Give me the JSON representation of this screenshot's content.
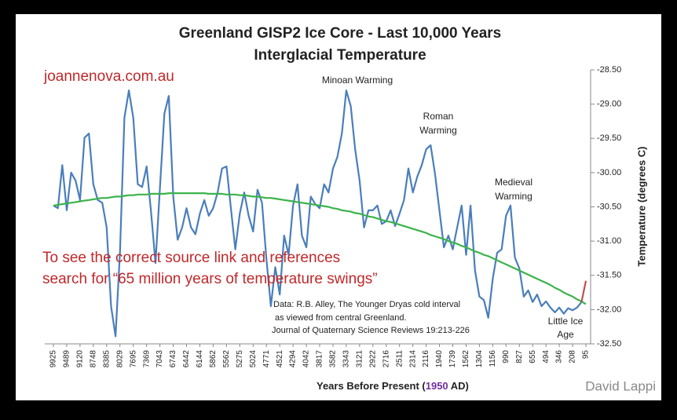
{
  "chart_data": {
    "type": "line",
    "title": [
      "Greenland GISP2 Ice Core - Last 10,000 Years",
      "Interglacial Temperature"
    ],
    "x_label": [
      "Years Before Present (",
      "1950",
      " AD)"
    ],
    "y_label": "Temperature (degrees C)",
    "site": "joannenova.com.au",
    "notice": [
      "To see the correct source link and references",
      "search for “65 million years of temperature swings”"
    ],
    "source": [
      "Data: R.B. Alley,  The Younger Dryas cold interval",
      "as viewed from central Greenland.",
      "Journal of Quaternary  Science Reviews 19:213-226"
    ],
    "annotations": [
      [
        "Minoan Warming"
      ],
      [
        "Roman",
        "Warming"
      ],
      [
        "Medieval",
        "Warming"
      ],
      [
        "Little Ice",
        "Age"
      ]
    ],
    "watermark": "David Lappi",
    "categories": [
      "9925",
      null,
      null,
      "9489",
      null,
      null,
      "9120",
      null,
      null,
      "8748",
      null,
      null,
      "8385",
      null,
      null,
      "8029",
      null,
      null,
      "7695",
      null,
      null,
      "7369",
      null,
      null,
      "7043",
      null,
      null,
      "6743",
      null,
      null,
      "6442",
      null,
      null,
      "6144",
      null,
      null,
      "5862",
      null,
      null,
      "5562",
      null,
      null,
      "5275",
      null,
      null,
      "5024",
      null,
      null,
      "4771",
      null,
      null,
      "4521",
      null,
      null,
      "4294",
      null,
      null,
      "4042",
      null,
      null,
      "3817",
      null,
      null,
      "3582",
      null,
      null,
      "3343",
      null,
      null,
      "3121",
      null,
      null,
      "2922",
      null,
      null,
      "2716",
      null,
      null,
      "2511",
      null,
      null,
      "2314",
      null,
      null,
      "2116",
      null,
      null,
      "1940",
      null,
      null,
      "1739",
      null,
      null,
      "1562",
      null,
      null,
      "1304",
      null,
      null,
      "1156",
      null,
      null,
      "990",
      null,
      null,
      "827",
      null,
      null,
      "655",
      null,
      null,
      "494",
      null,
      null,
      "346",
      null,
      null,
      "208",
      null,
      null,
      "95"
    ],
    "series": [
      {
        "color": "#4a7ebb",
        "values": [
          -30.48,
          -30.52,
          -29.89,
          -30.55,
          -30.0,
          -30.12,
          -30.4,
          -29.49,
          -29.43,
          -30.17,
          -30.4,
          -30.44,
          -30.8,
          -31.95,
          -32.39,
          -31.15,
          -29.2,
          -28.8,
          -29.2,
          -30.17,
          -30.21,
          -29.91,
          -30.57,
          -31.32,
          -30.23,
          -29.14,
          -28.88,
          -30.35,
          -30.98,
          -30.8,
          -30.52,
          -30.8,
          -30.9,
          -30.6,
          -30.4,
          -30.63,
          -30.52,
          -30.29,
          -29.94,
          -29.91,
          -30.52,
          -31.12,
          -30.6,
          -30.29,
          -30.63,
          -30.86,
          -30.25,
          -30.44,
          -31.26,
          -31.95,
          -31.38,
          -31.78,
          -30.92,
          -31.2,
          -30.48,
          -30.17,
          -30.92,
          -31.09,
          -30.35,
          -30.46,
          -30.52,
          -30.17,
          -30.29,
          -29.94,
          -29.77,
          -29.43,
          -28.8,
          -29.03,
          -29.66,
          -30.12,
          -30.8,
          -30.55,
          -30.55,
          -30.48,
          -30.75,
          -30.71,
          -30.55,
          -30.78,
          -30.6,
          -30.4,
          -29.94,
          -30.29,
          -30.06,
          -29.89,
          -29.66,
          -29.6,
          -30.02,
          -30.55,
          -31.09,
          -30.92,
          -31.12,
          -30.8,
          -30.48,
          -31.2,
          -30.48,
          -31.43,
          -31.81,
          -31.86,
          -32.12,
          -31.55,
          -31.17,
          -31.12,
          -30.63,
          -30.48,
          -31.24,
          -31.4,
          -31.81,
          -31.72,
          -31.89,
          -31.78,
          -31.95,
          -31.88,
          -31.97,
          -32.04,
          -31.97,
          -32.06,
          -31.98,
          -32.01,
          -31.97,
          -31.89,
          null
        ]
      },
      {
        "color": "#3bb34a",
        "values": [
          -30.48,
          -30.47,
          -30.46,
          -30.45,
          -30.44,
          -30.43,
          -30.42,
          -30.41,
          -30.4,
          -30.39,
          -30.38,
          -30.37,
          -30.37,
          -30.36,
          -30.35,
          -30.35,
          -30.34,
          -30.33,
          -30.33,
          -30.32,
          -30.32,
          -30.32,
          -30.31,
          -30.31,
          -30.31,
          -30.31,
          -30.3,
          -30.3,
          -30.3,
          -30.3,
          -30.3,
          -30.3,
          -30.3,
          -30.3,
          -30.3,
          -30.31,
          -30.31,
          -30.31,
          -30.31,
          -30.32,
          -30.32,
          -30.32,
          -30.33,
          -30.33,
          -30.34,
          -30.35,
          -30.35,
          -30.36,
          -30.37,
          -30.37,
          -30.38,
          -30.39,
          -30.4,
          -30.41,
          -30.42,
          -30.43,
          -30.44,
          -30.45,
          -30.46,
          -30.47,
          -30.48,
          -30.49,
          -30.5,
          -30.52,
          -30.53,
          -30.55,
          -30.56,
          -30.57,
          -30.59,
          -30.6,
          -30.62,
          -30.64,
          -30.65,
          -30.67,
          -30.69,
          -30.71,
          -30.72,
          -30.74,
          -30.76,
          -30.78,
          -30.8,
          -30.82,
          -30.84,
          -30.86,
          -30.88,
          -30.91,
          -30.93,
          -30.95,
          -30.97,
          -31.0,
          -31.02,
          -31.04,
          -31.07,
          -31.09,
          -31.12,
          -31.15,
          -31.17,
          -31.2,
          -31.22,
          -31.25,
          -31.28,
          -31.31,
          -31.34,
          -31.37,
          -31.4,
          -31.43,
          -31.46,
          -31.49,
          -31.52,
          -31.55,
          -31.58,
          -31.61,
          -31.64,
          -31.68,
          -31.71,
          -31.75,
          -31.78,
          -31.81,
          -31.85,
          -31.88,
          -31.92
        ]
      },
      {
        "color": "#c0504d",
        "values": [
          null,
          null,
          null,
          null,
          null,
          null,
          null,
          null,
          null,
          null,
          null,
          null,
          null,
          null,
          null,
          null,
          null,
          null,
          null,
          null,
          null,
          null,
          null,
          null,
          null,
          null,
          null,
          null,
          null,
          null,
          null,
          null,
          null,
          null,
          null,
          null,
          null,
          null,
          null,
          null,
          null,
          null,
          null,
          null,
          null,
          null,
          null,
          null,
          null,
          null,
          null,
          null,
          null,
          null,
          null,
          null,
          null,
          null,
          null,
          null,
          null,
          null,
          null,
          null,
          null,
          null,
          null,
          null,
          null,
          null,
          null,
          null,
          null,
          null,
          null,
          null,
          null,
          null,
          null,
          null,
          null,
          null,
          null,
          null,
          null,
          null,
          null,
          null,
          null,
          null,
          null,
          null,
          null,
          null,
          null,
          null,
          null,
          null,
          null,
          null,
          null,
          null,
          null,
          null,
          null,
          null,
          null,
          null,
          null,
          null,
          null,
          null,
          null,
          null,
          null,
          null,
          null,
          null,
          null,
          -31.89,
          -31.58
        ]
      }
    ],
    "ylim": [
      -32.5,
      -28.5
    ],
    "yticks": [
      {
        "value": -28.5,
        "label": "-28.50"
      },
      {
        "value": -29,
        "label": "-29.00"
      },
      {
        "value": -29.5,
        "label": "-29.50"
      },
      {
        "value": -30,
        "label": "-30.00"
      },
      {
        "value": -30.5,
        "label": "-30.50"
      },
      {
        "value": -31,
        "label": "-31.00"
      },
      {
        "value": -31.5,
        "label": "-31.50"
      },
      {
        "value": -32,
        "label": "-32.00"
      },
      {
        "value": -32.5,
        "label": "-32.50"
      }
    ]
  }
}
